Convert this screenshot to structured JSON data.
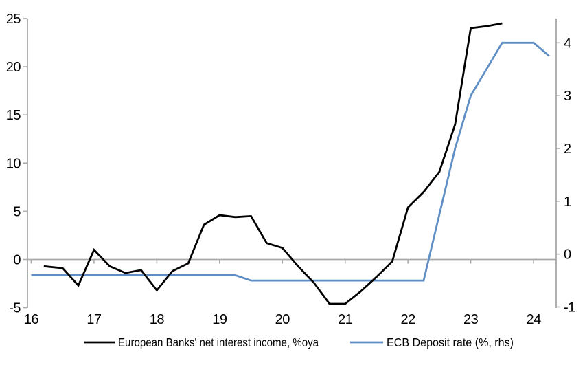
{
  "chart_data": {
    "type": "line",
    "title": "",
    "xlabel": "",
    "ylabel_left": "",
    "ylabel_right": "",
    "grid": false,
    "zero_line": true,
    "legend_position": "bottom",
    "x_axis": {
      "ticks": [
        16,
        17,
        18,
        19,
        20,
        21,
        22,
        23,
        24
      ],
      "range": [
        15.94,
        24.36
      ]
    },
    "y_left": {
      "ticks": [
        -5,
        0,
        5,
        10,
        15,
        20,
        25
      ],
      "range": [
        -5.03,
        25
      ]
    },
    "y_right": {
      "ticks": [
        -1,
        0,
        1,
        2,
        3,
        4
      ],
      "range": [
        -1.02,
        4.46
      ]
    },
    "series": [
      {
        "name": "European Banks' net interest income, %oya",
        "axis": "left",
        "color": "#000000",
        "x": [
          16.2,
          16.5,
          16.75,
          17.0,
          17.25,
          17.5,
          17.75,
          18.0,
          18.25,
          18.5,
          18.75,
          19.0,
          19.25,
          19.5,
          19.75,
          20.0,
          20.25,
          20.5,
          20.75,
          21.0,
          21.25,
          21.5,
          21.75,
          22.0,
          22.25,
          22.5,
          22.75,
          23.0,
          23.25,
          23.5
        ],
        "values": [
          -0.7,
          -0.9,
          -2.7,
          1.0,
          -0.7,
          -1.4,
          -1.1,
          -3.2,
          -1.2,
          -0.4,
          3.6,
          4.6,
          4.4,
          4.5,
          1.7,
          1.2,
          -0.7,
          -2.4,
          -4.6,
          -4.6,
          -3.3,
          -1.8,
          -0.2,
          5.4,
          7.0,
          9.1,
          14.0,
          24.0,
          24.2,
          24.5
        ]
      },
      {
        "name": "ECB Deposit rate (%, rhs)",
        "axis": "right",
        "color": "#5f8fc5",
        "x": [
          16.0,
          16.25,
          16.5,
          16.75,
          17.0,
          17.25,
          17.5,
          17.75,
          18.0,
          18.25,
          18.5,
          18.75,
          19.0,
          19.25,
          19.5,
          19.75,
          20.0,
          20.25,
          20.5,
          20.75,
          21.0,
          21.25,
          21.5,
          21.75,
          22.0,
          22.25,
          22.5,
          22.75,
          23.0,
          23.25,
          23.5,
          23.75,
          24.0,
          24.25
        ],
        "values": [
          -0.4,
          -0.4,
          -0.4,
          -0.4,
          -0.4,
          -0.4,
          -0.4,
          -0.4,
          -0.4,
          -0.4,
          -0.4,
          -0.4,
          -0.4,
          -0.4,
          -0.5,
          -0.5,
          -0.5,
          -0.5,
          -0.5,
          -0.5,
          -0.5,
          -0.5,
          -0.5,
          -0.5,
          -0.5,
          -0.5,
          0.75,
          2.0,
          3.0,
          3.5,
          4.0,
          4.0,
          4.0,
          3.75
        ]
      }
    ]
  },
  "colors": {
    "axis": "#a8a8a8",
    "background": "#ffffff",
    "tick_label": "#000000"
  }
}
